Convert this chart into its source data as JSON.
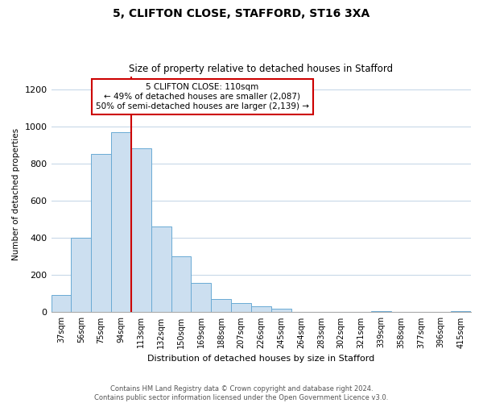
{
  "title": "5, CLIFTON CLOSE, STAFFORD, ST16 3XA",
  "subtitle": "Size of property relative to detached houses in Stafford",
  "xlabel": "Distribution of detached houses by size in Stafford",
  "ylabel": "Number of detached properties",
  "bar_labels": [
    "37sqm",
    "56sqm",
    "75sqm",
    "94sqm",
    "113sqm",
    "132sqm",
    "150sqm",
    "169sqm",
    "188sqm",
    "207sqm",
    "226sqm",
    "245sqm",
    "264sqm",
    "283sqm",
    "302sqm",
    "321sqm",
    "339sqm",
    "358sqm",
    "377sqm",
    "396sqm",
    "415sqm"
  ],
  "bar_values": [
    95,
    400,
    850,
    970,
    880,
    460,
    300,
    160,
    70,
    50,
    33,
    18,
    0,
    0,
    0,
    0,
    5,
    0,
    0,
    0,
    5
  ],
  "bar_color": "#ccdff0",
  "bar_edge_color": "#6aaad4",
  "vline_label": "5 CLIFTON CLOSE: 110sqm",
  "annotation_line1": "← 49% of detached houses are smaller (2,087)",
  "annotation_line2": "50% of semi-detached houses are larger (2,139) →",
  "annotation_box_color": "#ffffff",
  "annotation_box_edge": "#cc0000",
  "vline_color": "#cc0000",
  "vline_pos": 3.5,
  "ylim": [
    0,
    1270
  ],
  "yticks": [
    0,
    200,
    400,
    600,
    800,
    1000,
    1200
  ],
  "footer_line1": "Contains HM Land Registry data © Crown copyright and database right 2024.",
  "footer_line2": "Contains public sector information licensed under the Open Government Licence v3.0.",
  "bg_color": "#ffffff",
  "grid_color": "#c8d8e8"
}
